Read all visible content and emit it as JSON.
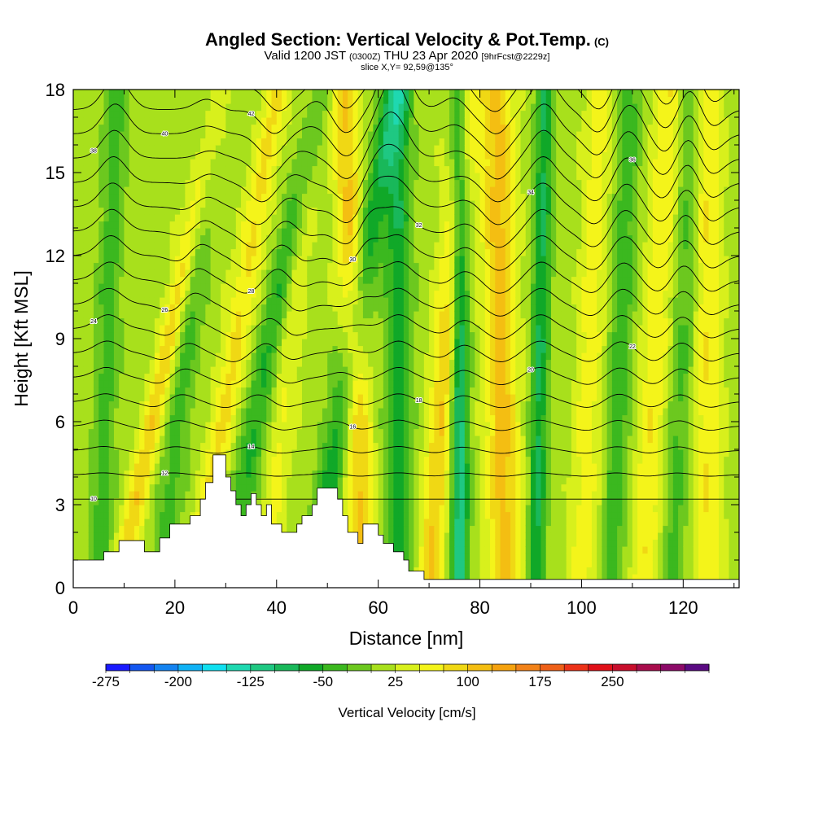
{
  "header": {
    "title": "Angled Section: Vertical Velocity & Pot.Temp.",
    "title_mark": "(C)",
    "sub_valid": "Valid 1200 JST",
    "sub_utc": "(0300Z)",
    "sub_date": "THU 23 Apr 2020",
    "sub_fcst": "[9hrFcst@2229z]",
    "slice": "slice X,Y= 92,59@135°"
  },
  "chart_data": {
    "type": "heatmap",
    "xlabel": "Distance [nm]",
    "ylabel": "Height [Kft MSL]",
    "xlim": [
      0,
      131
    ],
    "ylim": [
      0,
      18
    ],
    "x_ticks": [
      0,
      20,
      40,
      60,
      80,
      100,
      120
    ],
    "y_ticks": [
      0,
      3,
      6,
      9,
      12,
      15,
      18
    ],
    "colorbar": {
      "label": "Vertical Velocity [cm/s]",
      "min": -275,
      "step": 25,
      "colors": [
        "#1a1aff",
        "#1457f0",
        "#1483f0",
        "#10b2f5",
        "#10e0f0",
        "#1fd8b0",
        "#1fc882",
        "#19b85a",
        "#10a828",
        "#3bb81f",
        "#6cc81f",
        "#a8e01c",
        "#d8f01c",
        "#f4f41a",
        "#f0d814",
        "#f4be12",
        "#f5a20e",
        "#f28218",
        "#ee6018",
        "#ec3218",
        "#e01018",
        "#c80e2c",
        "#a80c4c",
        "#8c0a68",
        "#5a0a82"
      ],
      "tick_labels": [
        "-275",
        "-200",
        "-125",
        "-50",
        "25",
        "100",
        "175",
        "250"
      ],
      "tick_values": [
        -275,
        -200,
        -125,
        -50,
        25,
        100,
        175,
        250
      ]
    },
    "updraft_bands": [
      {
        "x_base": 9,
        "slant": 1.1,
        "w": 2.2,
        "v": 80
      },
      {
        "x_base": 24,
        "slant": 0.9,
        "w": 2.5,
        "v": 65
      },
      {
        "x_base": 38,
        "slant": 0.5,
        "w": 2.5,
        "v": 40
      },
      {
        "x_base": 57,
        "slant": -0.2,
        "w": 2.6,
        "v": 90
      },
      {
        "x_base": 70,
        "slant": 0.4,
        "w": 2.6,
        "v": 85
      },
      {
        "x_base": 85,
        "slant": -0.1,
        "w": 3.2,
        "v": 95
      },
      {
        "x_base": 100,
        "slant": 0.2,
        "w": 2.5,
        "v": 50
      },
      {
        "x_base": 112,
        "slant": 0.3,
        "w": 2.8,
        "v": 55
      },
      {
        "x_base": 125,
        "slant": 0,
        "w": 2.6,
        "v": 60
      }
    ],
    "downdraft_bands": [
      {
        "x_base": 5,
        "slant": 0.2,
        "w": 2.3,
        "v": -55
      },
      {
        "x_base": 17,
        "slant": 0.6,
        "w": 2.6,
        "v": -50
      },
      {
        "x_base": 30,
        "slant": 1,
        "w": 2.6,
        "v": -70
      },
      {
        "x_base": 47,
        "slant": 0.9,
        "w": 2.8,
        "v": -80
      },
      {
        "x_base": 64,
        "slant": 0,
        "w": 2.5,
        "v": -85
      },
      {
        "x_base": 76,
        "slant": 0,
        "w": 1.8,
        "v": -130
      },
      {
        "x_base": 91,
        "slant": 0.1,
        "w": 1.7,
        "v": -95
      },
      {
        "x_base": 106,
        "slant": 0.2,
        "w": 2.2,
        "v": -55
      },
      {
        "x_base": 118,
        "slant": 0.2,
        "w": 2.2,
        "v": -45
      }
    ],
    "terrain": [
      [
        0,
        1
      ],
      [
        6,
        1
      ],
      [
        6,
        1.3
      ],
      [
        9,
        1.3
      ],
      [
        9,
        1.7
      ],
      [
        14,
        1.7
      ],
      [
        14,
        1.3
      ],
      [
        17,
        1.3
      ],
      [
        17,
        1.8
      ],
      [
        19,
        1.8
      ],
      [
        19,
        2.3
      ],
      [
        23,
        2.3
      ],
      [
        23,
        2.6
      ],
      [
        25,
        2.6
      ],
      [
        25,
        3.2
      ],
      [
        26,
        3.2
      ],
      [
        26,
        3.8
      ],
      [
        27.5,
        3.8
      ],
      [
        27.5,
        4.8
      ],
      [
        30,
        4.8
      ],
      [
        30,
        4
      ],
      [
        31,
        4
      ],
      [
        31,
        3.5
      ],
      [
        32,
        3.5
      ],
      [
        32,
        3
      ],
      [
        33,
        3
      ],
      [
        33,
        2.6
      ],
      [
        34,
        2.6
      ],
      [
        34,
        3
      ],
      [
        35,
        3
      ],
      [
        35,
        3.4
      ],
      [
        36,
        3.4
      ],
      [
        36,
        3
      ],
      [
        37,
        3
      ],
      [
        37,
        2.6
      ],
      [
        38,
        2.6
      ],
      [
        38,
        3
      ],
      [
        39,
        3
      ],
      [
        39,
        2.3
      ],
      [
        41,
        2.3
      ],
      [
        41,
        2
      ],
      [
        44,
        2
      ],
      [
        44,
        2.3
      ],
      [
        45,
        2.3
      ],
      [
        45,
        2.6
      ],
      [
        47,
        2.6
      ],
      [
        47,
        3
      ],
      [
        48,
        3
      ],
      [
        48,
        3.6
      ],
      [
        52,
        3.6
      ],
      [
        52,
        3.2
      ],
      [
        53,
        3.2
      ],
      [
        53,
        2.6
      ],
      [
        54,
        2.6
      ],
      [
        54,
        2
      ],
      [
        56,
        2
      ],
      [
        56,
        1.6
      ],
      [
        57,
        1.6
      ],
      [
        57,
        2.3
      ],
      [
        60,
        2.3
      ],
      [
        60,
        1.9
      ],
      [
        61,
        1.9
      ],
      [
        61,
        1.6
      ],
      [
        63,
        1.6
      ],
      [
        63,
        1.3
      ],
      [
        65,
        1.3
      ],
      [
        65,
        1
      ],
      [
        66,
        1
      ],
      [
        66,
        0.6
      ],
      [
        69,
        0.6
      ],
      [
        69,
        0.3
      ],
      [
        131,
        0.3
      ],
      [
        131,
        0
      ]
    ],
    "theta_labels": [
      "10",
      "12",
      "14",
      "16",
      "18",
      "20",
      "22",
      "24",
      "26",
      "28",
      "30",
      "32",
      "34",
      "36",
      "38",
      "40",
      "42"
    ]
  }
}
